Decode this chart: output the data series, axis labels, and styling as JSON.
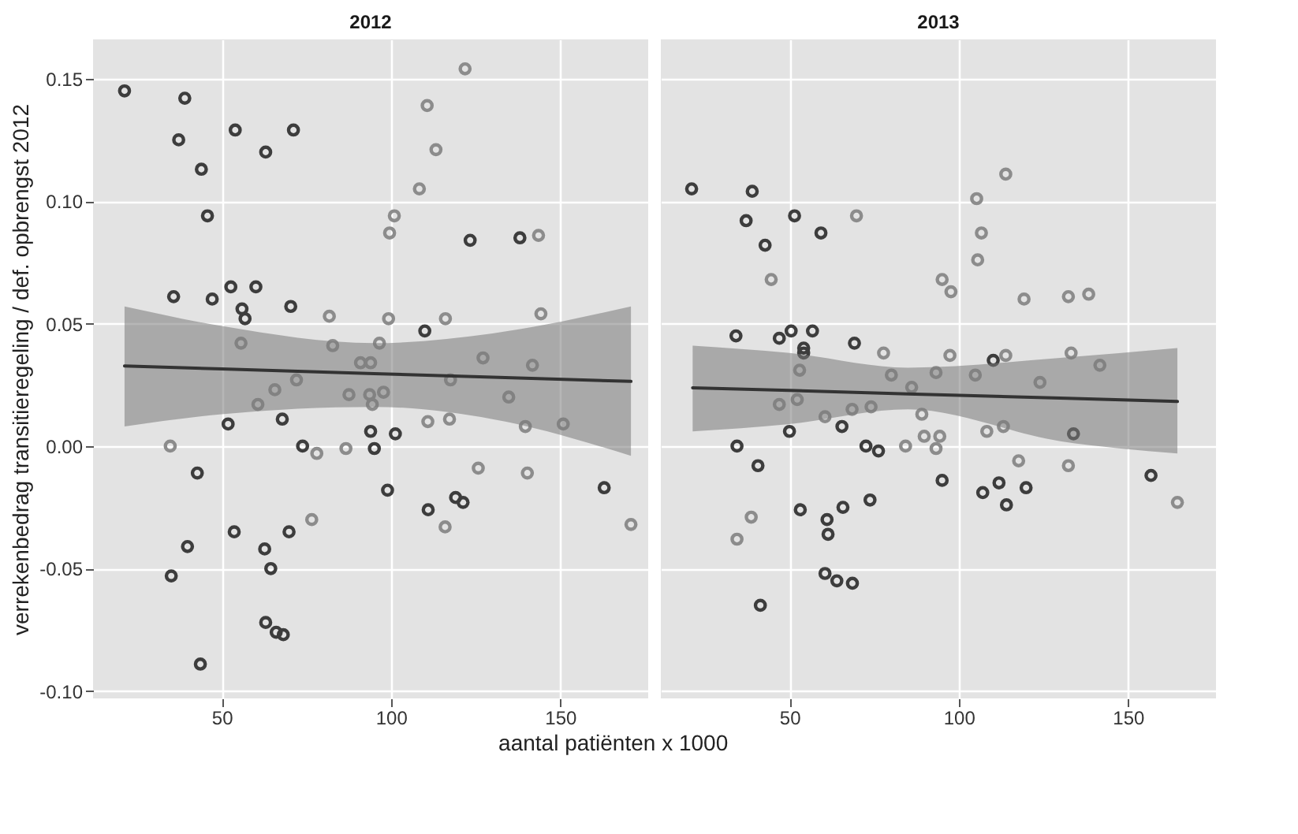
{
  "chart_data": [
    {
      "type": "scatter",
      "title": "2012",
      "xlabel": "aantal patiënten x 1000",
      "ylabel": "verrekenbedrag transitieregeling / def. opbrengst 2012",
      "xlim": [
        12,
        176
      ],
      "xticks": [
        50,
        100,
        150
      ],
      "ylim": [
        -0.103,
        0.166
      ],
      "yticks": [
        {
          "value": -0.1,
          "label": "-0.10"
        },
        {
          "value": -0.05,
          "label": "-0.05"
        },
        {
          "value": 0,
          "label": "0.00"
        },
        {
          "value": 0.05,
          "label": "0.05"
        },
        {
          "value": 0.1,
          "label": "0.10"
        },
        {
          "value": 0.15,
          "label": "0.15"
        }
      ],
      "grid": true,
      "series": [
        {
          "color": "#3d3d3d",
          "marker": "circle",
          "x": [
            21.3,
            39.1,
            37.3,
            54.0,
            71.2,
            63.0,
            44.0,
            45.8,
            123.4,
            138.1,
            35.8,
            47.2,
            52.7,
            60.1,
            56.0,
            56.9,
            70.4,
            110.0,
            51.9,
            67.9,
            94.0,
            101.3,
            95.1,
            73.9,
            42.8,
            99.0,
            111.0,
            119.1,
            121.3,
            163.0,
            53.7,
            69.9,
            39.9,
            35.1,
            62.7,
            64.5,
            63.0,
            66.1,
            68.2,
            43.7
          ],
          "values": [
            0.145,
            0.142,
            0.125,
            0.129,
            0.129,
            0.12,
            0.113,
            0.094,
            0.084,
            0.085,
            0.061,
            0.06,
            0.065,
            0.065,
            0.056,
            0.052,
            0.057,
            0.047,
            0.009,
            0.011,
            0.006,
            0.005,
            -0.001,
            0.0,
            -0.011,
            -0.018,
            -0.026,
            -0.021,
            -0.023,
            -0.017,
            -0.035,
            -0.035,
            -0.041,
            -0.053,
            -0.042,
            -0.05,
            -0.072,
            -0.076,
            -0.077,
            -0.089
          ]
        },
        {
          "color": "#8c8c8c",
          "marker": "circle",
          "x": [
            121.9,
            110.7,
            113.3,
            108.4,
            101.0,
            99.6,
            143.6,
            81.8,
            99.3,
            116.1,
            144.3,
            55.7,
            82.8,
            96.6,
            127.2,
            141.8,
            91.0,
            94.0,
            65.7,
            72.1,
            87.6,
            93.7,
            97.8,
            117.6,
            134.8,
            60.7,
            94.5,
            110.9,
            117.3,
            139.7,
            150.9,
            34.8,
            78.1,
            86.7,
            125.8,
            140.3,
            76.6,
            116.0,
            170.9
          ],
          "values": [
            0.154,
            0.139,
            0.121,
            0.105,
            0.094,
            0.087,
            0.086,
            0.053,
            0.052,
            0.052,
            0.054,
            0.042,
            0.041,
            0.042,
            0.036,
            0.033,
            0.034,
            0.034,
            0.023,
            0.027,
            0.021,
            0.021,
            0.022,
            0.027,
            0.02,
            0.017,
            0.017,
            0.01,
            0.011,
            0.008,
            0.009,
            0.0,
            -0.003,
            -0.001,
            -0.009,
            -0.011,
            -0.03,
            -0.033,
            -0.032
          ]
        },
        {
          "type": "line",
          "color": "#333333",
          "x": [
            21.3,
            50,
            95,
            130,
            170.9
          ],
          "values": [
            0.0327,
            0.0315,
            0.0296,
            0.0281,
            0.0264
          ],
          "lower": [
            0.008,
            0.013,
            0.016,
            0.011,
            -0.004
          ],
          "upper": [
            0.057,
            0.049,
            0.042,
            0.046,
            0.057
          ]
        }
      ]
    },
    {
      "type": "scatter",
      "title": "2013",
      "xlim": [
        12,
        176
      ],
      "xticks": [
        50,
        100,
        150
      ],
      "ylim": [
        -0.103,
        0.166
      ],
      "yticks": [
        -0.1,
        -0.05,
        0,
        0.05,
        0.1,
        0.15
      ],
      "grid": true,
      "tick_labels": "x",
      "series": [
        {
          "color": "#3d3d3d",
          "marker": "circle",
          "x": [
            21.1,
            39.0,
            37.2,
            51.5,
            59.3,
            42.8,
            34.2,
            47.0,
            50.5,
            56.8,
            69.2,
            54.2,
            54.2,
            110.2,
            50.0,
            65.5,
            34.5,
            72.6,
            76.3,
            40.7,
            133.9,
            95.1,
            107.1,
            111.9,
            119.9,
            114.1,
            156.8,
            53.2,
            65.8,
            73.8,
            61.1,
            61.4,
            60.5,
            64.0,
            68.6,
            41.4
          ],
          "values": [
            0.105,
            0.104,
            0.092,
            0.094,
            0.087,
            0.082,
            0.045,
            0.044,
            0.047,
            0.047,
            0.042,
            0.04,
            0.038,
            0.035,
            0.006,
            0.008,
            0.0,
            0.0,
            -0.002,
            -0.008,
            0.005,
            -0.014,
            -0.019,
            -0.015,
            -0.017,
            -0.024,
            -0.012,
            -0.026,
            -0.025,
            -0.022,
            -0.03,
            -0.036,
            -0.052,
            -0.055,
            -0.056,
            -0.065
          ]
        },
        {
          "color": "#8c8c8c",
          "marker": "circle",
          "x": [
            113.9,
            105.3,
            106.7,
            105.6,
            69.8,
            44.6,
            95.1,
            97.7,
            119.3,
            132.4,
            138.4,
            77.8,
            97.4,
            113.9,
            133.2,
            53.0,
            80.1,
            93.3,
            104.9,
            124.0,
            141.7,
            47.0,
            52.3,
            60.5,
            68.5,
            74.1,
            89.1,
            86.1,
            108.3,
            113.2,
            89.8,
            94.4,
            84.3,
            93.3,
            117.7,
            132.4,
            164.6,
            38.7,
            34.5
          ],
          "values": [
            0.111,
            0.101,
            0.087,
            0.076,
            0.094,
            0.068,
            0.068,
            0.063,
            0.06,
            0.061,
            0.062,
            0.038,
            0.037,
            0.037,
            0.038,
            0.031,
            0.029,
            0.03,
            0.029,
            0.026,
            0.033,
            0.017,
            0.019,
            0.012,
            0.015,
            0.016,
            0.013,
            0.024,
            0.006,
            0.008,
            0.004,
            0.004,
            0.0,
            -0.001,
            -0.006,
            -0.008,
            -0.023,
            -0.029,
            -0.038
          ]
        },
        {
          "type": "line",
          "color": "#333333",
          "x": [
            21.4,
            50,
            85,
            130,
            164.6
          ],
          "values": [
            0.0238,
            0.0227,
            0.0213,
            0.0196,
            0.0182
          ],
          "lower": [
            0.006,
            0.009,
            0.015,
            0.002,
            -0.003
          ],
          "upper": [
            0.041,
            0.038,
            0.032,
            0.036,
            0.04
          ]
        }
      ]
    }
  ]
}
